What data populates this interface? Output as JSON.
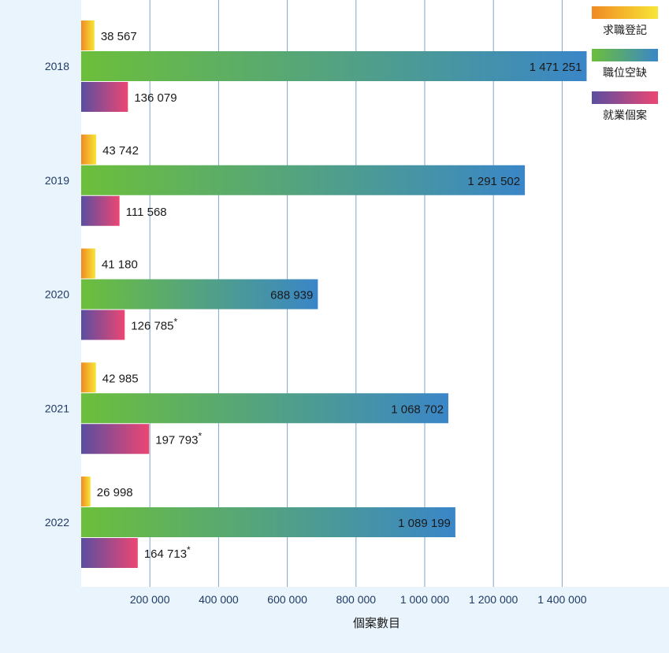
{
  "chart_data": {
    "type": "bar",
    "orientation": "horizontal",
    "categories": [
      "2018",
      "2019",
      "2020",
      "2021",
      "2022"
    ],
    "series": [
      {
        "name": "求職登記",
        "values": [
          38567,
          43742,
          41180,
          42985,
          26998
        ],
        "labels": [
          "38 567",
          "43 742",
          "41 180",
          "42 985",
          "26 998"
        ],
        "color_start": "#f08a24",
        "color_end": "#f7e635"
      },
      {
        "name": "職位空缺",
        "values": [
          1471251,
          1291502,
          688939,
          1068702,
          1089199
        ],
        "labels": [
          "1 471 251",
          "1 291 502",
          "688 939",
          "1 068 702",
          "1 089 199"
        ],
        "color_start": "#6cbf3a",
        "color_end": "#3a86c8"
      },
      {
        "name": "就業個案",
        "values": [
          136079,
          111568,
          126785,
          197793,
          164713
        ],
        "labels": [
          "136 079",
          "111 568",
          "126 785",
          "197 793",
          "164 713"
        ],
        "asterisk": [
          false,
          false,
          true,
          true,
          true
        ],
        "color_start": "#5a4ea0",
        "color_end": "#ec4673"
      }
    ],
    "xlabel": "個案數目",
    "ylabel": "",
    "xlim": [
      0,
      1500000
    ],
    "xticks": [
      200000,
      400000,
      600000,
      800000,
      1000000,
      1200000,
      1400000
    ],
    "xtick_labels": [
      "200 000",
      "400 000",
      "600 000",
      "800 000",
      "1 000 000",
      "1 200 000",
      "1 400 000"
    ],
    "grid": true,
    "legend_position": "top-right"
  },
  "colors": {
    "background": "#eaf4fc",
    "plot_background": "#ffffff",
    "gridline": "#7fa6c9",
    "axis_text": "#1f3a66"
  }
}
